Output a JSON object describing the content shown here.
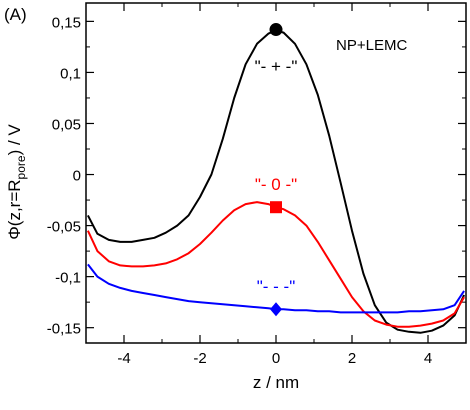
{
  "chart_data": {
    "type": "line",
    "panel_label": "(A)",
    "annotation": "NP+LEMC",
    "xlabel": "z / nm",
    "ylabel": "Φ(z,r=R",
    "ylabel_sub": "pore",
    "ylabel_tail": ") / V",
    "xlim": [
      -5,
      5
    ],
    "ylim": [
      -0.165,
      0.168
    ],
    "x_ticks": [
      -4,
      -2,
      0,
      2,
      4
    ],
    "x_tick_labels": [
      "-4",
      "-2",
      "0",
      "2",
      "4"
    ],
    "y_ticks": [
      0.15,
      0.1,
      0.05,
      0,
      -0.05,
      -0.1,
      -0.15
    ],
    "y_tick_labels": [
      "0,15",
      "0,1",
      "0,05",
      "0",
      "-0,05",
      "-0,1",
      "-0,15"
    ],
    "grid": false,
    "series": [
      {
        "name": "\"- + -\"",
        "color": "#000000",
        "marker": "circle",
        "marker_point": [
          0,
          0.142
        ],
        "x": [
          -4.95,
          -4.7,
          -4.4,
          -4.1,
          -3.8,
          -3.5,
          -3.2,
          -2.9,
          -2.6,
          -2.3,
          -2.0,
          -1.7,
          -1.4,
          -1.1,
          -0.8,
          -0.5,
          -0.2,
          0.0,
          0.2,
          0.5,
          0.8,
          1.1,
          1.4,
          1.7,
          2.0,
          2.3,
          2.6,
          2.9,
          3.2,
          3.5,
          3.8,
          4.1,
          4.4,
          4.7,
          4.95
        ],
        "y": [
          -0.04,
          -0.058,
          -0.064,
          -0.066,
          -0.066,
          -0.064,
          -0.062,
          -0.057,
          -0.05,
          -0.04,
          -0.022,
          0.0,
          0.035,
          0.075,
          0.108,
          0.128,
          0.138,
          0.141,
          0.139,
          0.128,
          0.108,
          0.078,
          0.038,
          -0.008,
          -0.055,
          -0.097,
          -0.128,
          -0.145,
          -0.152,
          -0.154,
          -0.155,
          -0.153,
          -0.148,
          -0.138,
          -0.118
        ]
      },
      {
        "name": "\"- 0 -\"",
        "color": "#ff0000",
        "marker": "square",
        "marker_point": [
          0,
          -0.032
        ],
        "x": [
          -4.95,
          -4.7,
          -4.4,
          -4.1,
          -3.8,
          -3.5,
          -3.2,
          -2.9,
          -2.6,
          -2.3,
          -2.0,
          -1.7,
          -1.4,
          -1.1,
          -0.8,
          -0.5,
          -0.2,
          0.0,
          0.2,
          0.5,
          0.8,
          1.1,
          1.4,
          1.7,
          2.0,
          2.3,
          2.6,
          2.9,
          3.2,
          3.5,
          3.8,
          4.1,
          4.4,
          4.7,
          4.95
        ],
        "y": [
          -0.055,
          -0.075,
          -0.085,
          -0.089,
          -0.09,
          -0.09,
          -0.089,
          -0.087,
          -0.083,
          -0.077,
          -0.068,
          -0.057,
          -0.045,
          -0.035,
          -0.029,
          -0.027,
          -0.029,
          -0.032,
          -0.034,
          -0.04,
          -0.05,
          -0.066,
          -0.084,
          -0.102,
          -0.12,
          -0.134,
          -0.143,
          -0.147,
          -0.149,
          -0.149,
          -0.148,
          -0.146,
          -0.143,
          -0.136,
          -0.12
        ]
      },
      {
        "name": "\"- - -\"",
        "color": "#0000ff",
        "marker": "diamond",
        "marker_point": [
          0,
          -0.132
        ],
        "x": [
          -4.95,
          -4.7,
          -4.4,
          -4.1,
          -3.8,
          -3.5,
          -3.2,
          -2.9,
          -2.6,
          -2.3,
          -2.0,
          -1.7,
          -1.4,
          -1.1,
          -0.8,
          -0.5,
          -0.2,
          0.0,
          0.2,
          0.5,
          0.8,
          1.1,
          1.4,
          1.7,
          2.0,
          2.3,
          2.6,
          2.9,
          3.2,
          3.5,
          3.8,
          4.1,
          4.4,
          4.7,
          4.95
        ],
        "y": [
          -0.088,
          -0.1,
          -0.107,
          -0.111,
          -0.114,
          -0.116,
          -0.118,
          -0.12,
          -0.122,
          -0.124,
          -0.125,
          -0.126,
          -0.127,
          -0.128,
          -0.129,
          -0.13,
          -0.131,
          -0.132,
          -0.132,
          -0.133,
          -0.133,
          -0.134,
          -0.134,
          -0.135,
          -0.135,
          -0.135,
          -0.135,
          -0.135,
          -0.135,
          -0.134,
          -0.134,
          -0.133,
          -0.132,
          -0.128,
          -0.114
        ]
      }
    ]
  }
}
